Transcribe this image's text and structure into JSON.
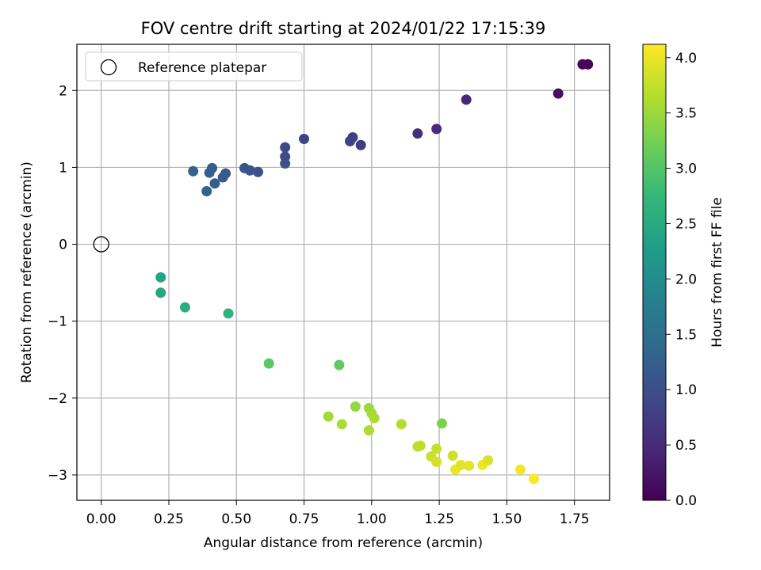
{
  "chart_data": {
    "type": "scatter",
    "title": "FOV centre drift starting at 2024/01/22 17:15:39",
    "xlabel": "Angular distance from reference (arcmin)",
    "ylabel": "Rotation from reference (arcmin)",
    "xlim": [
      -0.09,
      1.88
    ],
    "ylim": [
      -3.33,
      2.6
    ],
    "xticks": [
      "0.00",
      "0.25",
      "0.50",
      "0.75",
      "1.00",
      "1.25",
      "1.50",
      "1.75"
    ],
    "yticks": [
      "−3",
      "−2",
      "−1",
      "0",
      "1",
      "2"
    ],
    "grid": true,
    "legend": {
      "position": "top-left",
      "entries": [
        "Reference platepar"
      ]
    },
    "reference_point": {
      "x": 0.0,
      "y": 0.0
    },
    "colorbar": {
      "label": "Hours from first FF file",
      "colormap": "viridis",
      "range": [
        0.0,
        4.12
      ],
      "ticks": [
        "0.0",
        "0.5",
        "1.0",
        "1.5",
        "2.0",
        "2.5",
        "3.0",
        "3.5",
        "4.0"
      ]
    },
    "points": [
      {
        "x": 1.8,
        "y": 2.34,
        "c": 0.05
      },
      {
        "x": 1.78,
        "y": 2.34,
        "c": 0.08
      },
      {
        "x": 1.69,
        "y": 1.96,
        "c": 0.15
      },
      {
        "x": 1.35,
        "y": 1.88,
        "c": 0.45
      },
      {
        "x": 1.24,
        "y": 1.5,
        "c": 0.5
      },
      {
        "x": 1.17,
        "y": 1.44,
        "c": 0.55
      },
      {
        "x": 0.96,
        "y": 1.29,
        "c": 0.75
      },
      {
        "x": 0.93,
        "y": 1.39,
        "c": 0.78
      },
      {
        "x": 0.92,
        "y": 1.34,
        "c": 0.8
      },
      {
        "x": 0.75,
        "y": 1.37,
        "c": 0.85
      },
      {
        "x": 0.68,
        "y": 1.26,
        "c": 0.9
      },
      {
        "x": 0.68,
        "y": 1.14,
        "c": 0.95
      },
      {
        "x": 0.68,
        "y": 1.05,
        "c": 1.0
      },
      {
        "x": 0.58,
        "y": 0.94,
        "c": 1.05
      },
      {
        "x": 0.55,
        "y": 0.96,
        "c": 1.08
      },
      {
        "x": 0.53,
        "y": 0.99,
        "c": 1.1
      },
      {
        "x": 0.46,
        "y": 0.92,
        "c": 1.15
      },
      {
        "x": 0.45,
        "y": 0.87,
        "c": 1.18
      },
      {
        "x": 0.42,
        "y": 0.79,
        "c": 1.22
      },
      {
        "x": 0.41,
        "y": 0.99,
        "c": 1.2
      },
      {
        "x": 0.4,
        "y": 0.93,
        "c": 1.25
      },
      {
        "x": 0.39,
        "y": 0.69,
        "c": 1.3
      },
      {
        "x": 0.34,
        "y": 0.95,
        "c": 1.28
      },
      {
        "x": 0.22,
        "y": -0.43,
        "c": 2.4
      },
      {
        "x": 0.22,
        "y": -0.63,
        "c": 2.45
      },
      {
        "x": 0.31,
        "y": -0.82,
        "c": 2.55
      },
      {
        "x": 0.47,
        "y": -0.9,
        "c": 2.65
      },
      {
        "x": 0.62,
        "y": -1.55,
        "c": 3.05
      },
      {
        "x": 0.88,
        "y": -1.57,
        "c": 3.1
      },
      {
        "x": 1.26,
        "y": -2.33,
        "c": 3.3
      },
      {
        "x": 0.94,
        "y": -2.11,
        "c": 3.45
      },
      {
        "x": 0.84,
        "y": -2.24,
        "c": 3.55
      },
      {
        "x": 0.99,
        "y": -2.13,
        "c": 3.5
      },
      {
        "x": 1.0,
        "y": -2.2,
        "c": 3.55
      },
      {
        "x": 1.01,
        "y": -2.26,
        "c": 3.58
      },
      {
        "x": 0.89,
        "y": -2.34,
        "c": 3.6
      },
      {
        "x": 0.99,
        "y": -2.42,
        "c": 3.62
      },
      {
        "x": 1.11,
        "y": -2.34,
        "c": 3.65
      },
      {
        "x": 1.17,
        "y": -2.63,
        "c": 3.7
      },
      {
        "x": 1.18,
        "y": -2.62,
        "c": 3.72
      },
      {
        "x": 1.24,
        "y": -2.66,
        "c": 3.75
      },
      {
        "x": 1.22,
        "y": -2.76,
        "c": 3.8
      },
      {
        "x": 1.24,
        "y": -2.83,
        "c": 3.85
      },
      {
        "x": 1.3,
        "y": -2.75,
        "c": 3.82
      },
      {
        "x": 1.31,
        "y": -2.93,
        "c": 4.0
      },
      {
        "x": 1.33,
        "y": -2.87,
        "c": 3.95
      },
      {
        "x": 1.36,
        "y": -2.88,
        "c": 3.97
      },
      {
        "x": 1.41,
        "y": -2.87,
        "c": 4.02
      },
      {
        "x": 1.43,
        "y": -2.81,
        "c": 3.9
      },
      {
        "x": 1.55,
        "y": -2.93,
        "c": 4.05
      },
      {
        "x": 1.6,
        "y": -3.05,
        "c": 4.1
      }
    ]
  }
}
